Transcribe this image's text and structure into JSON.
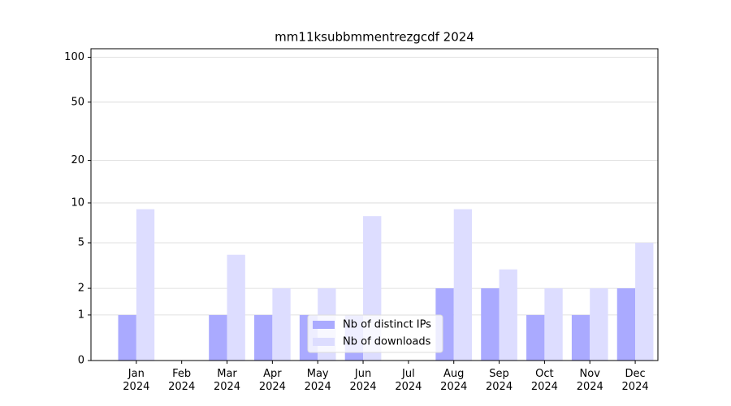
{
  "chart_data": {
    "type": "bar",
    "title": "mm11ksubbmmentrezgcdf 2024",
    "categories": [
      "Jan\n2024",
      "Feb\n2024",
      "Mar\n2024",
      "Apr\n2024",
      "May\n2024",
      "Jun\n2024",
      "Jul\n2024",
      "Aug\n2024",
      "Sep\n2024",
      "Oct\n2024",
      "Nov\n2024",
      "Dec\n2024"
    ],
    "series": [
      {
        "name": "Nb of distinct IPs",
        "color": "#aaaaff",
        "values": [
          1,
          0,
          1,
          1,
          1,
          1,
          0,
          2,
          2,
          1,
          1,
          2
        ]
      },
      {
        "name": "Nb of downloads",
        "color": "#ddddff",
        "values": [
          9,
          0,
          4,
          2,
          2,
          8,
          0,
          9,
          3,
          2,
          2,
          5
        ]
      }
    ],
    "y_scale": "log1p",
    "ylim": [
      0,
      114
    ],
    "yticks": [
      0,
      1,
      2,
      5,
      10,
      20,
      50,
      100
    ],
    "grid": true,
    "legend": "lower center"
  }
}
